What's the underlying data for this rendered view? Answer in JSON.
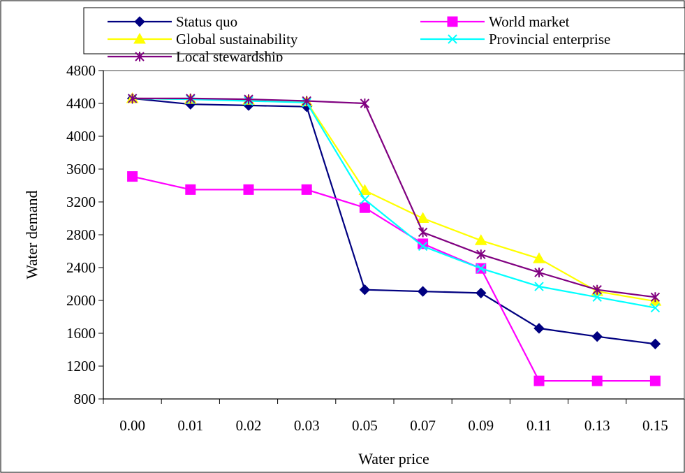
{
  "chart_data": {
    "type": "line",
    "title": "",
    "xlabel": "Water price",
    "ylabel": "Water demand",
    "categories": [
      "0.00",
      "0.01",
      "0.02",
      "0.03",
      "0.05",
      "0.07",
      "0.09",
      "0.11",
      "0.13",
      "0.15"
    ],
    "ylim": [
      800,
      4800
    ],
    "yticks": [
      800,
      1200,
      1600,
      2000,
      2400,
      2800,
      3200,
      3600,
      4000,
      4400,
      4800
    ],
    "grid": false,
    "legend": "top",
    "series": [
      {
        "name": "Status quo",
        "color": "#000080",
        "marker": "diamond",
        "values": [
          4460,
          4390,
          4375,
          4360,
          2130,
          2110,
          2090,
          1660,
          1560,
          1470
        ]
      },
      {
        "name": "World market",
        "color": "#ff00ff",
        "marker": "square",
        "values": [
          3510,
          3350,
          3350,
          3350,
          3130,
          2690,
          2390,
          1020,
          1020,
          1020
        ]
      },
      {
        "name": "Global sustainability",
        "color": "#ffff00",
        "marker": "triangle",
        "values": [
          4460,
          4450,
          4440,
          4420,
          3340,
          3000,
          2730,
          2510,
          2110,
          1990
        ]
      },
      {
        "name": "Provincial enterprise",
        "color": "#00ffff",
        "marker": "x",
        "values": [
          4460,
          4450,
          4430,
          4410,
          3230,
          2660,
          2390,
          2170,
          2040,
          1910
        ]
      },
      {
        "name": "Local stewardship",
        "color": "#800080",
        "marker": "asterisk",
        "values": [
          4460,
          4460,
          4450,
          4430,
          4400,
          2830,
          2560,
          2340,
          2130,
          2040
        ]
      }
    ]
  }
}
